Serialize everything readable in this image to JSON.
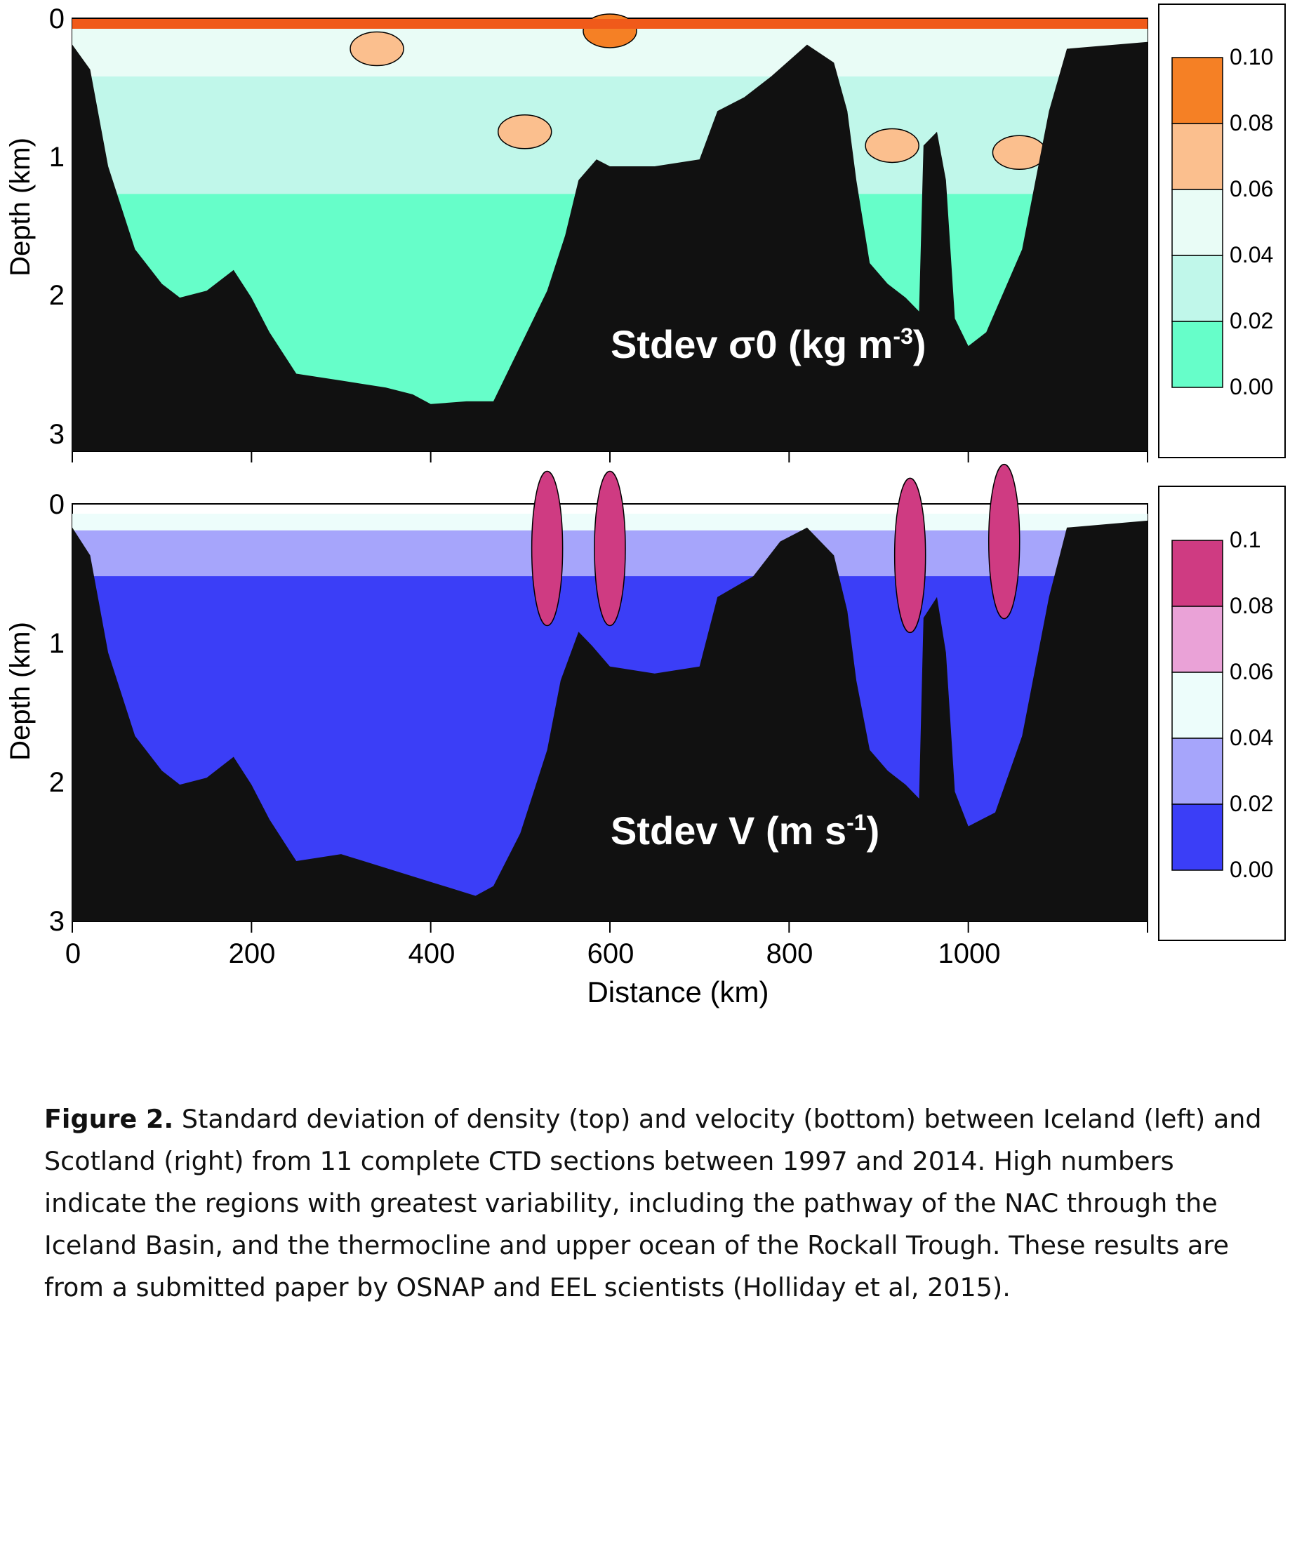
{
  "figure": {
    "caption_label": "Figure 2.",
    "caption_text": " Standard deviation of density (top) and velocity (bottom) between Iceland (left) and Scotland (right) from 11 complete CTD sections between 1997 and 2014. High numbers indicate the regions with greatest variability, including the pathway of the NAC through the Iceland Basin, and the thermocline and upper ocean of the Rockall Trough.  These results are from a submitted paper by OSNAP and EEL scientists (Holliday et al, 2015)."
  },
  "chart_data": [
    {
      "type": "heatmap",
      "panel": "top",
      "title": "Stdev σ0 (kg m-3)",
      "title_text": "Stdev σ0 (kg m",
      "title_sup": "-3",
      "title_close": ")",
      "xlabel": "",
      "ylabel": "Depth (km)",
      "xlim": [
        0,
        1200
      ],
      "ylim": [
        0,
        3
      ],
      "y_reversed": true,
      "x_ticks": [
        0,
        200,
        400,
        600,
        800,
        1000
      ],
      "x_ticks_labeled": false,
      "y_ticks": [
        "0",
        "1",
        "2",
        "3"
      ],
      "colorbar": {
        "labels": [
          "0.10",
          "0.08",
          "0.06",
          "0.04",
          "0.02",
          "0.00"
        ],
        "colors": [
          "#f58025",
          "#fbbf8e",
          "#e9fcf6",
          "#c0f7ea",
          "#66fec9"
        ]
      },
      "seafloor_km": [
        [
          0,
          0.12
        ],
        [
          20,
          0.3
        ],
        [
          40,
          1.0
        ],
        [
          70,
          1.6
        ],
        [
          100,
          1.85
        ],
        [
          120,
          1.95
        ],
        [
          150,
          1.9
        ],
        [
          180,
          1.75
        ],
        [
          200,
          1.95
        ],
        [
          220,
          2.2
        ],
        [
          250,
          2.5
        ],
        [
          300,
          2.55
        ],
        [
          350,
          2.6
        ],
        [
          380,
          2.65
        ],
        [
          400,
          2.72
        ],
        [
          440,
          2.7
        ],
        [
          470,
          2.7
        ],
        [
          500,
          2.3
        ],
        [
          530,
          1.9
        ],
        [
          550,
          1.5
        ],
        [
          565,
          1.1
        ],
        [
          585,
          0.95
        ],
        [
          600,
          1.0
        ],
        [
          650,
          1.0
        ],
        [
          700,
          0.95
        ],
        [
          720,
          0.6
        ],
        [
          750,
          0.5
        ],
        [
          780,
          0.35
        ],
        [
          820,
          0.12
        ],
        [
          850,
          0.25
        ],
        [
          865,
          0.6
        ],
        [
          875,
          1.1
        ],
        [
          890,
          1.7
        ],
        [
          910,
          1.85
        ],
        [
          930,
          1.95
        ],
        [
          945,
          2.05
        ],
        [
          950,
          0.85
        ],
        [
          965,
          0.75
        ],
        [
          975,
          1.1
        ],
        [
          985,
          2.1
        ],
        [
          1000,
          2.3
        ],
        [
          1020,
          2.2
        ],
        [
          1060,
          1.6
        ],
        [
          1090,
          0.6
        ],
        [
          1110,
          0.15
        ],
        [
          1200,
          0.1
        ]
      ],
      "features": [
        {
          "value_band": "0.06-0.08",
          "center": [
            340,
            0.15
          ]
        },
        {
          "value_band": "0.06-0.08",
          "center": [
            505,
            0.75
          ]
        },
        {
          "value_band": "0.06-0.08",
          "center": [
            915,
            0.85
          ]
        },
        {
          "value_band": "0.06-0.08",
          "center": [
            1057,
            0.9
          ]
        },
        {
          "value_band": "0.08-0.10",
          "center": [
            600,
            0.02
          ]
        }
      ]
    },
    {
      "type": "heatmap",
      "panel": "bottom",
      "title": "Stdev V (m s-1)",
      "title_text": "Stdev V (m s",
      "title_sup": "-1",
      "title_close": ")",
      "xlabel": "Distance (km)",
      "ylabel": "Depth (km)",
      "xlim": [
        0,
        1200
      ],
      "ylim": [
        0,
        3
      ],
      "y_reversed": true,
      "x_ticks": [
        "0",
        "200",
        "400",
        "600",
        "800",
        "1000"
      ],
      "y_ticks": [
        "0",
        "1",
        "2",
        "3"
      ],
      "colorbar": {
        "labels": [
          "0.1",
          "0.08",
          "0.06",
          "0.04",
          "0.02",
          "0.00"
        ],
        "colors": [
          "#cf3b82",
          "#eaa2d7",
          "#edfdfb",
          "#a6a5fb",
          "#3b3ef7"
        ]
      },
      "seafloor_km": [
        [
          0,
          0.1
        ],
        [
          20,
          0.3
        ],
        [
          40,
          1.0
        ],
        [
          70,
          1.6
        ],
        [
          100,
          1.85
        ],
        [
          120,
          1.95
        ],
        [
          150,
          1.9
        ],
        [
          180,
          1.75
        ],
        [
          200,
          1.95
        ],
        [
          220,
          2.2
        ],
        [
          250,
          2.5
        ],
        [
          300,
          2.45
        ],
        [
          350,
          2.55
        ],
        [
          400,
          2.65
        ],
        [
          450,
          2.75
        ],
        [
          470,
          2.68
        ],
        [
          500,
          2.3
        ],
        [
          530,
          1.7
        ],
        [
          545,
          1.2
        ],
        [
          565,
          0.85
        ],
        [
          580,
          0.95
        ],
        [
          600,
          1.1
        ],
        [
          650,
          1.15
        ],
        [
          700,
          1.1
        ],
        [
          720,
          0.6
        ],
        [
          760,
          0.45
        ],
        [
          790,
          0.2
        ],
        [
          820,
          0.1
        ],
        [
          850,
          0.3
        ],
        [
          865,
          0.7
        ],
        [
          875,
          1.2
        ],
        [
          890,
          1.7
        ],
        [
          910,
          1.85
        ],
        [
          930,
          1.95
        ],
        [
          945,
          2.05
        ],
        [
          950,
          0.75
        ],
        [
          965,
          0.6
        ],
        [
          975,
          1.0
        ],
        [
          985,
          2.0
        ],
        [
          1000,
          2.25
        ],
        [
          1030,
          2.15
        ],
        [
          1060,
          1.6
        ],
        [
          1090,
          0.6
        ],
        [
          1110,
          0.1
        ],
        [
          1200,
          0.05
        ]
      ],
      "features": [
        {
          "value_band": "0.08-0.10",
          "center": [
            530,
            0.25
          ]
        },
        {
          "value_band": "0.08-0.10",
          "center": [
            600,
            0.25
          ]
        },
        {
          "value_band": "0.08-0.10",
          "center": [
            935,
            0.3
          ]
        },
        {
          "value_band": "0.08-0.10",
          "center": [
            1040,
            0.2
          ]
        }
      ]
    }
  ]
}
